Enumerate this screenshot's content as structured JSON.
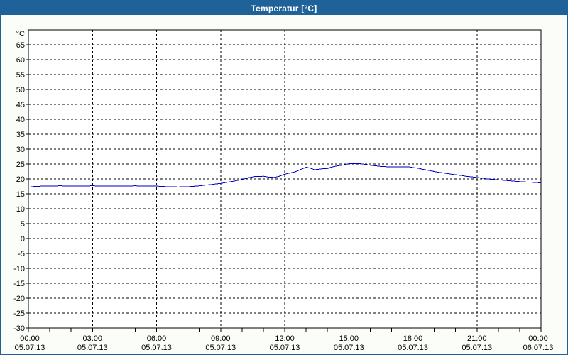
{
  "window": {
    "title": "Temperatur [°C]"
  },
  "colors": {
    "titlebar_bg": "#1F6299",
    "titlebar_text": "#FFFFFF",
    "window_border": "#1F6299",
    "content_bg": "#FBFEF8",
    "plot_bg": "#FFFFFF",
    "grid": "#000000",
    "axis": "#000000",
    "text": "#000000",
    "series_line": "#0000C8"
  },
  "chart_data": {
    "type": "line",
    "title": "Temperatur [°C]",
    "xlabel": "",
    "ylabel": "°C",
    "legend": "none",
    "grid": "dashed",
    "xlim": [
      0,
      24
    ],
    "ylim": [
      -30,
      70
    ],
    "y_tick_step": 5,
    "y_ticks": [
      65,
      60,
      55,
      50,
      45,
      40,
      35,
      30,
      25,
      20,
      15,
      10,
      5,
      0,
      -5,
      -10,
      -15,
      -20,
      -25,
      -30
    ],
    "x_minor_tick_every_hours": 1,
    "x_ticks": [
      {
        "hour": 0,
        "time": "00:00",
        "date": "05.07.13"
      },
      {
        "hour": 3,
        "time": "03:00",
        "date": "05.07.13"
      },
      {
        "hour": 6,
        "time": "06:00",
        "date": "05.07.13"
      },
      {
        "hour": 9,
        "time": "09:00",
        "date": "05.07.13"
      },
      {
        "hour": 12,
        "time": "12:00",
        "date": "05.07.13"
      },
      {
        "hour": 15,
        "time": "15:00",
        "date": "05.07.13"
      },
      {
        "hour": 18,
        "time": "18:00",
        "date": "05.07.13"
      },
      {
        "hour": 21,
        "time": "21:00",
        "date": "05.07.13"
      },
      {
        "hour": 24,
        "time": "00:00",
        "date": "06.07.13"
      }
    ],
    "series": [
      {
        "name": "Temperatur",
        "color": "#0000C8",
        "points": [
          [
            0,
            17.2
          ],
          [
            0.25,
            17.5
          ],
          [
            0.75,
            17.6
          ],
          [
            1.5,
            17.7
          ],
          [
            2.25,
            17.6
          ],
          [
            3,
            17.7
          ],
          [
            3.75,
            17.6
          ],
          [
            4.5,
            17.6
          ],
          [
            5,
            17.7
          ],
          [
            5.5,
            17.6
          ],
          [
            6,
            17.6
          ],
          [
            6.5,
            17.4
          ],
          [
            7,
            17.3
          ],
          [
            7.5,
            17.4
          ],
          [
            8,
            17.7
          ],
          [
            8.5,
            18.1
          ],
          [
            9,
            18.5
          ],
          [
            9.5,
            19.1
          ],
          [
            10,
            19.8
          ],
          [
            10.3,
            20.4
          ],
          [
            10.6,
            20.8
          ],
          [
            11,
            20.9
          ],
          [
            11.3,
            20.6
          ],
          [
            11.5,
            20.5
          ],
          [
            11.75,
            20.9
          ],
          [
            12,
            21.6
          ],
          [
            12.25,
            22.0
          ],
          [
            12.5,
            22.4
          ],
          [
            12.75,
            23.2
          ],
          [
            13,
            23.9
          ],
          [
            13.15,
            23.7
          ],
          [
            13.4,
            23.1
          ],
          [
            13.75,
            23.4
          ],
          [
            14,
            23.5
          ],
          [
            14.2,
            24.0
          ],
          [
            14.5,
            24.4
          ],
          [
            14.75,
            24.7
          ],
          [
            15,
            25.1
          ],
          [
            15.5,
            25.1
          ],
          [
            15.75,
            24.9
          ],
          [
            16,
            24.6
          ],
          [
            16.25,
            24.4
          ],
          [
            16.5,
            24.2
          ],
          [
            17,
            24.0
          ],
          [
            17.5,
            24.0
          ],
          [
            17.75,
            24.1
          ],
          [
            18,
            23.8
          ],
          [
            18.25,
            23.6
          ],
          [
            18.5,
            23.2
          ],
          [
            19,
            22.5
          ],
          [
            19.5,
            21.9
          ],
          [
            20,
            21.4
          ],
          [
            20.5,
            20.9
          ],
          [
            21,
            20.5
          ],
          [
            21.5,
            20.0
          ],
          [
            22,
            19.7
          ],
          [
            22.5,
            19.4
          ],
          [
            23,
            19.1
          ],
          [
            23.5,
            18.9
          ],
          [
            24,
            18.7
          ]
        ]
      }
    ]
  }
}
